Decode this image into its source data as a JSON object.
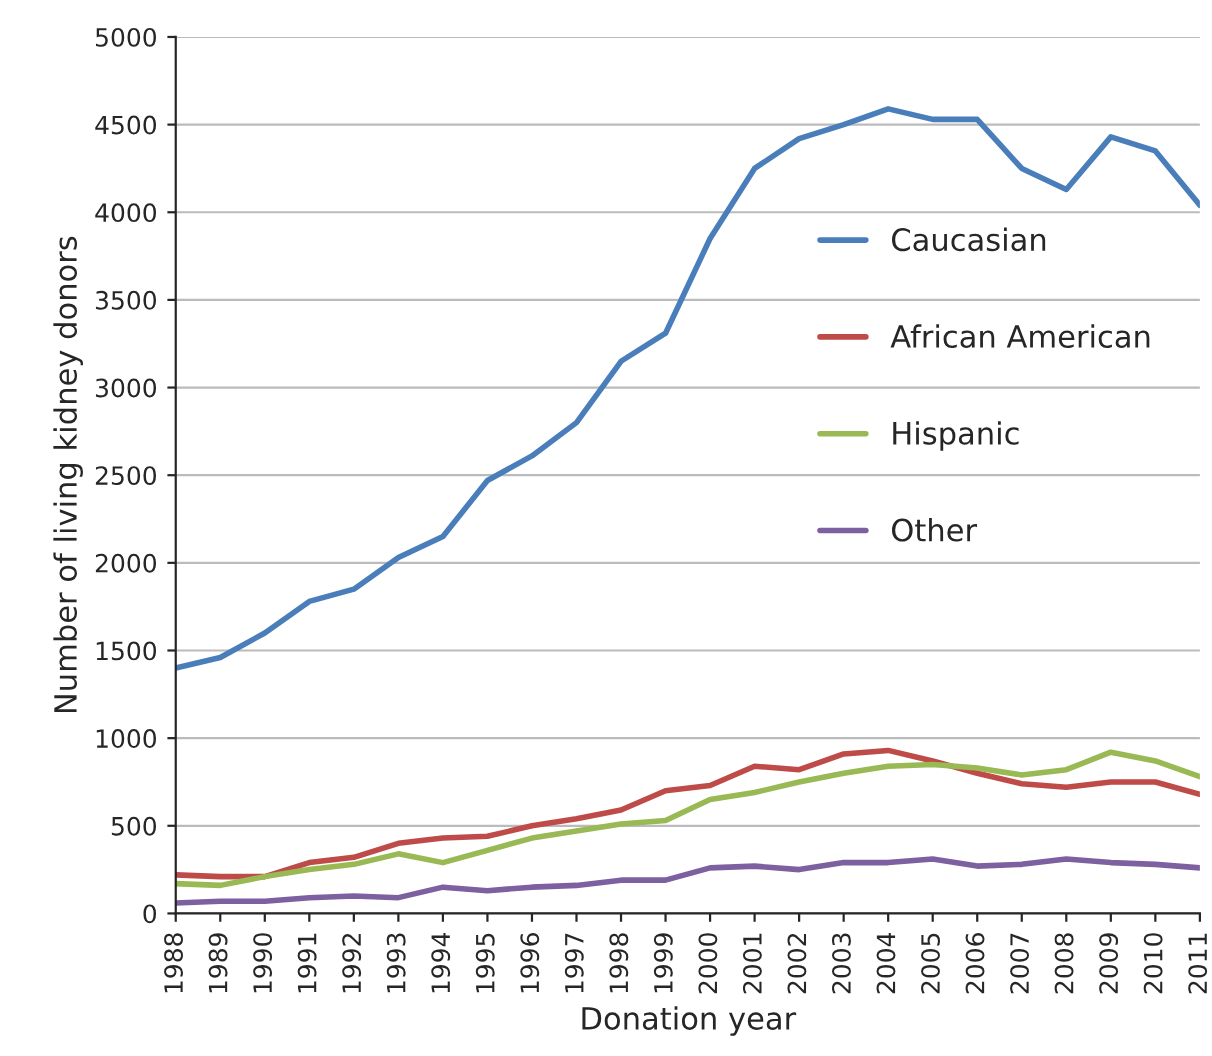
{
  "chart_data": {
    "type": "line",
    "xlabel": "Donation year",
    "ylabel": "Number of living kidney donors",
    "categories": [
      "1988",
      "1989",
      "1990",
      "1991",
      "1992",
      "1993",
      "1994",
      "1995",
      "1996",
      "1997",
      "1998",
      "1999",
      "2000",
      "2001",
      "2002",
      "2003",
      "2004",
      "2005",
      "2006",
      "2007",
      "2008",
      "2009",
      "2010",
      "2011"
    ],
    "series": [
      {
        "name": "Caucasian",
        "color": "#4a7ebb",
        "values": [
          1400,
          1460,
          1600,
          1780,
          1850,
          2030,
          2150,
          2470,
          2610,
          2800,
          3150,
          3310,
          3850,
          4250,
          4420,
          4500,
          4590,
          4530,
          4530,
          4250,
          4130,
          4430,
          4350,
          4040
        ]
      },
      {
        "name": "African American",
        "color": "#be4b48",
        "values": [
          220,
          210,
          210,
          290,
          320,
          400,
          430,
          440,
          500,
          540,
          590,
          700,
          730,
          840,
          820,
          910,
          930,
          870,
          800,
          740,
          720,
          750,
          750,
          680
        ]
      },
      {
        "name": "Hispanic",
        "color": "#98b954",
        "values": [
          170,
          160,
          210,
          250,
          280,
          340,
          290,
          360,
          430,
          470,
          510,
          530,
          650,
          690,
          750,
          800,
          840,
          850,
          830,
          790,
          820,
          920,
          870,
          780
        ]
      },
      {
        "name": "Other",
        "color": "#7d60a0",
        "values": [
          60,
          70,
          70,
          90,
          100,
          90,
          150,
          130,
          150,
          160,
          190,
          190,
          260,
          270,
          250,
          290,
          290,
          310,
          270,
          280,
          310,
          290,
          280,
          260
        ]
      }
    ],
    "ylim": [
      0,
      5000
    ],
    "yticks": [
      0,
      500,
      1000,
      1500,
      2000,
      2500,
      3000,
      3500,
      4000,
      4500,
      5000
    ],
    "grid": "y",
    "legend": "right",
    "marker": "none",
    "line_style": "solid"
  }
}
